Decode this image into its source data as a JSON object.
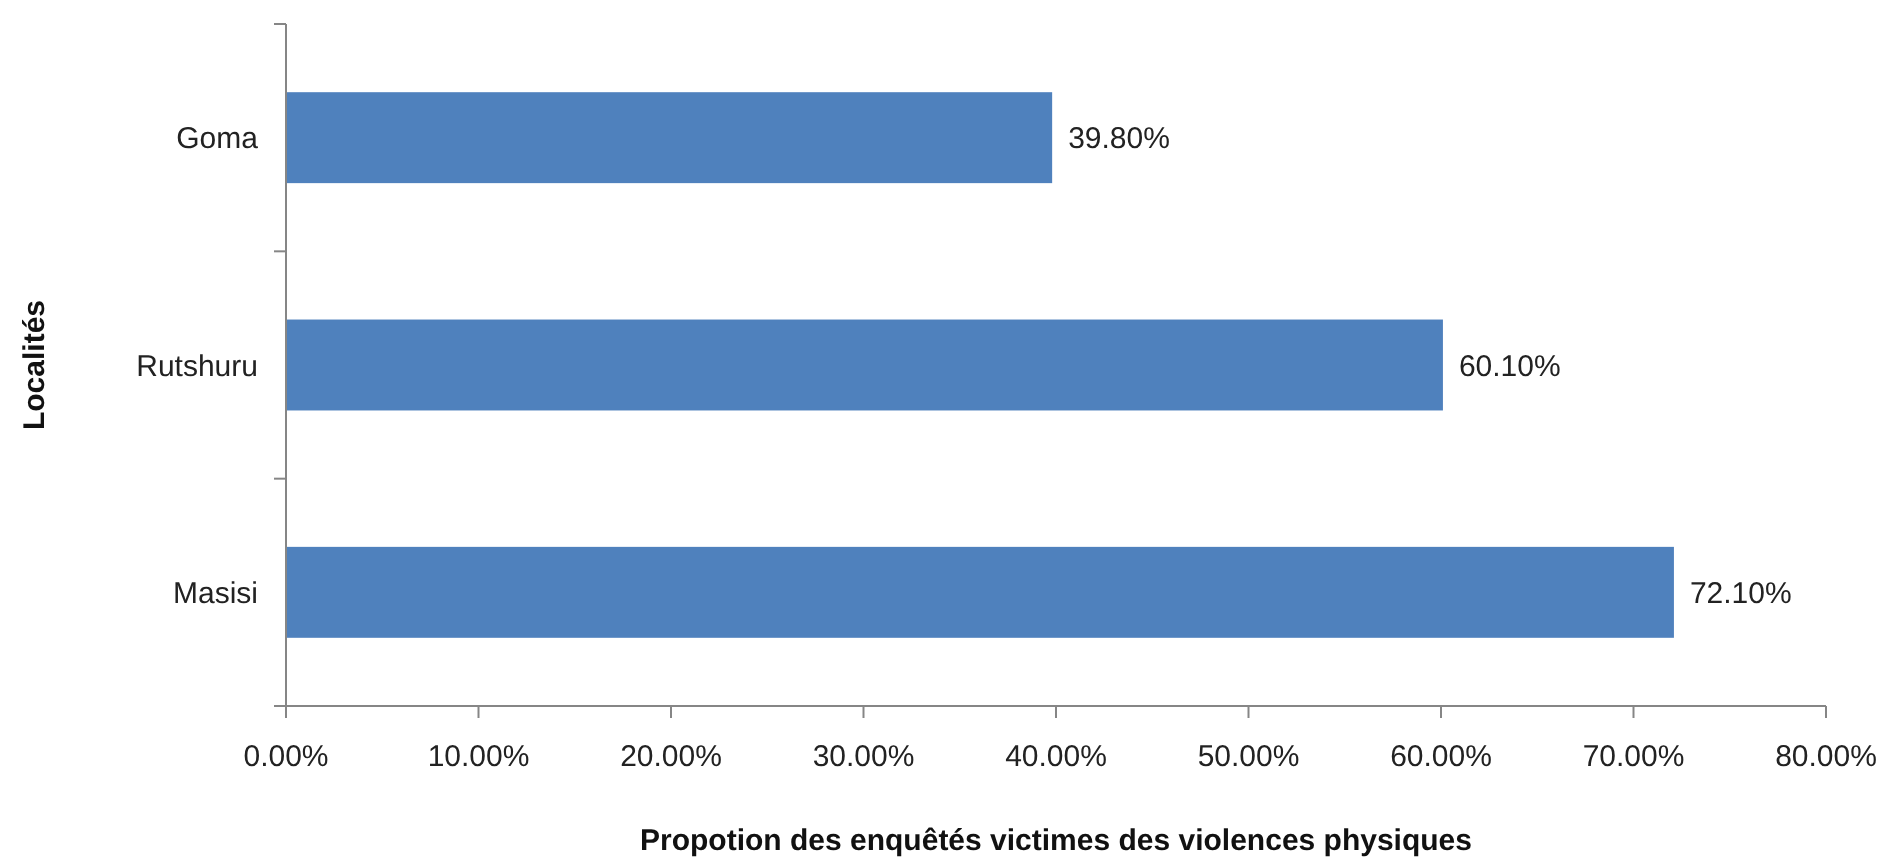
{
  "chart_data": {
    "type": "bar",
    "orientation": "horizontal",
    "xlabel": "Propotion des enquêtés victimes des violences physiques",
    "ylabel": "Localités",
    "categories": [
      "Goma",
      "Rutshuru",
      "Masisi"
    ],
    "values": [
      39.8,
      60.1,
      72.1
    ],
    "color": "#4f81bd",
    "value_labels": [
      "39.80%",
      "60.10%",
      "72.10%"
    ],
    "xlim": [
      0,
      80
    ],
    "xticks": [
      {
        "value": 0,
        "label": "0.00%"
      },
      {
        "value": 10,
        "label": "10.00%"
      },
      {
        "value": 20,
        "label": "20.00%"
      },
      {
        "value": 30,
        "label": "30.00%"
      },
      {
        "value": 40,
        "label": "40.00%"
      },
      {
        "value": 50,
        "label": "50.00%"
      },
      {
        "value": 60,
        "label": "60.00%"
      },
      {
        "value": 70,
        "label": "70.00%"
      },
      {
        "value": 80,
        "label": "80.00%"
      }
    ],
    "grid": false
  }
}
